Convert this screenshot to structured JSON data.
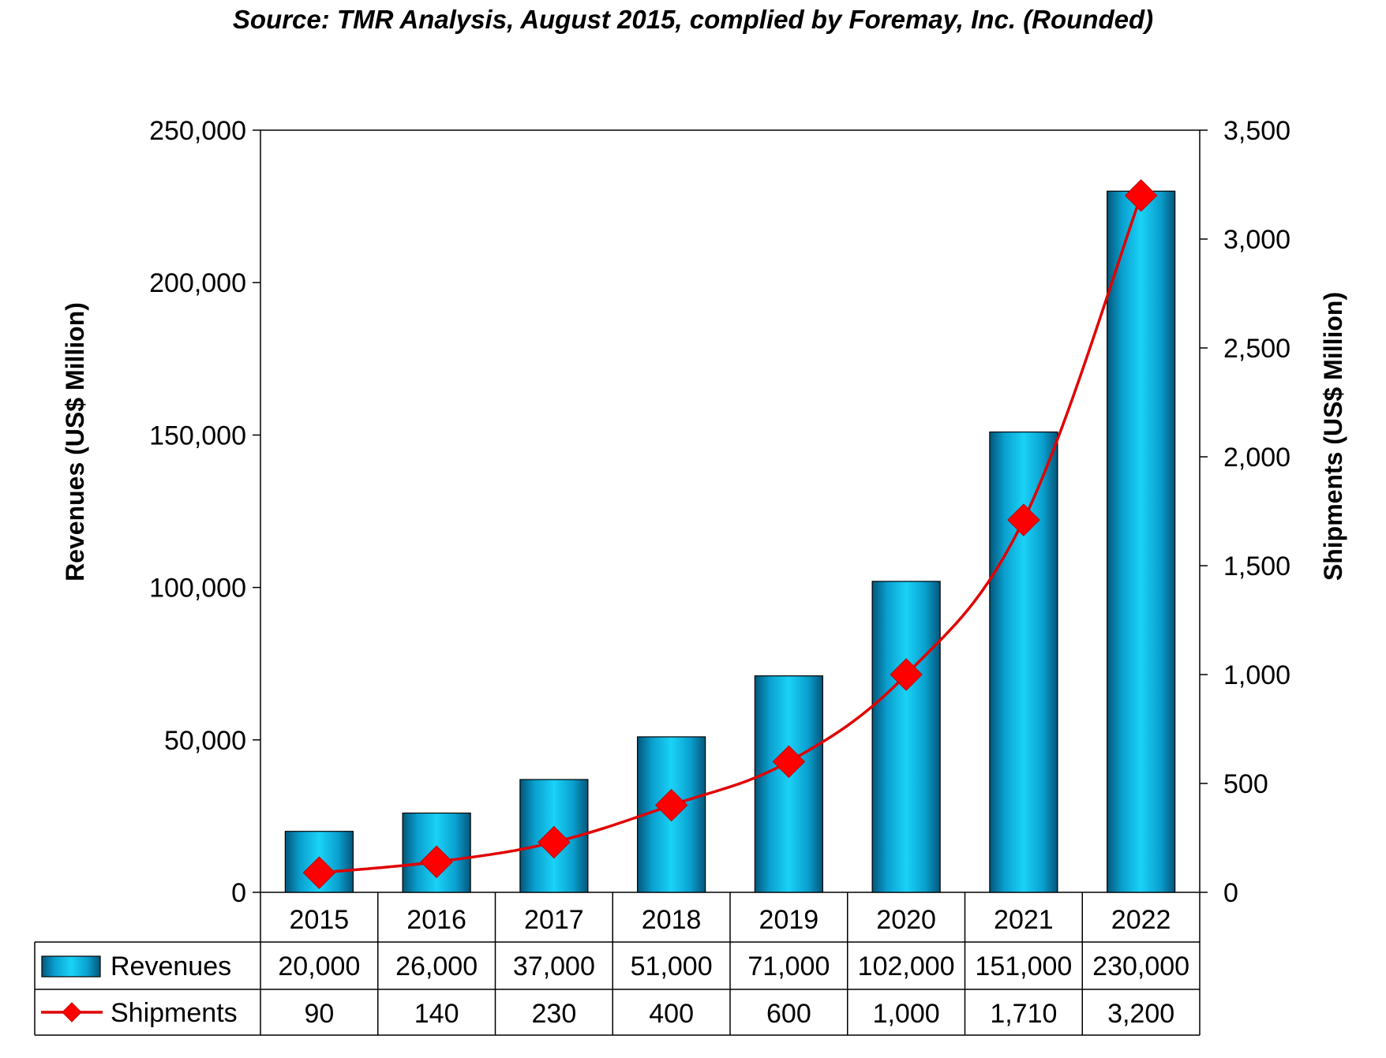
{
  "chart_data": {
    "type": "bar",
    "title": "Source: TMR Analysis, August 2015, complied by Foremay, Inc. (Rounded)",
    "categories": [
      "2015",
      "2016",
      "2017",
      "2018",
      "2019",
      "2020",
      "2021",
      "2022"
    ],
    "ylabel_left": "Revenues (US$ Million)",
    "ylabel_right": "Shipments (US$ Million)",
    "y_left": {
      "min": 0,
      "max": 250000,
      "ticks": [
        0,
        50000,
        100000,
        150000,
        200000,
        250000
      ],
      "tick_labels": [
        "0",
        "50,000",
        "100,000",
        "150,000",
        "200,000",
        "250,000"
      ]
    },
    "y_right": {
      "min": 0,
      "max": 3500,
      "ticks": [
        0,
        500,
        1000,
        1500,
        2000,
        2500,
        3000,
        3500
      ],
      "tick_labels": [
        "0",
        "500",
        "1,000",
        "1,500",
        "2,000",
        "2,500",
        "3,000",
        "3,500"
      ]
    },
    "series": [
      {
        "name": "Revenues",
        "kind": "bar",
        "axis": "left",
        "color": "#00B0E0",
        "values": [
          20000,
          26000,
          37000,
          51000,
          71000,
          102000,
          151000,
          230000
        ],
        "table_labels": [
          "20,000",
          "26,000",
          "37,000",
          "51,000",
          "71,000",
          "102,000",
          "151,000",
          "230,000"
        ]
      },
      {
        "name": "Shipments",
        "kind": "line",
        "axis": "right",
        "color": "#E00000",
        "marker": "diamond",
        "values": [
          90,
          140,
          230,
          400,
          600,
          1000,
          1710,
          3200
        ],
        "table_labels": [
          "90",
          "140",
          "230",
          "400",
          "600",
          "1,000",
          "1,710",
          "3,200"
        ]
      }
    ],
    "grid": false,
    "legend": "data-table-bottom"
  }
}
